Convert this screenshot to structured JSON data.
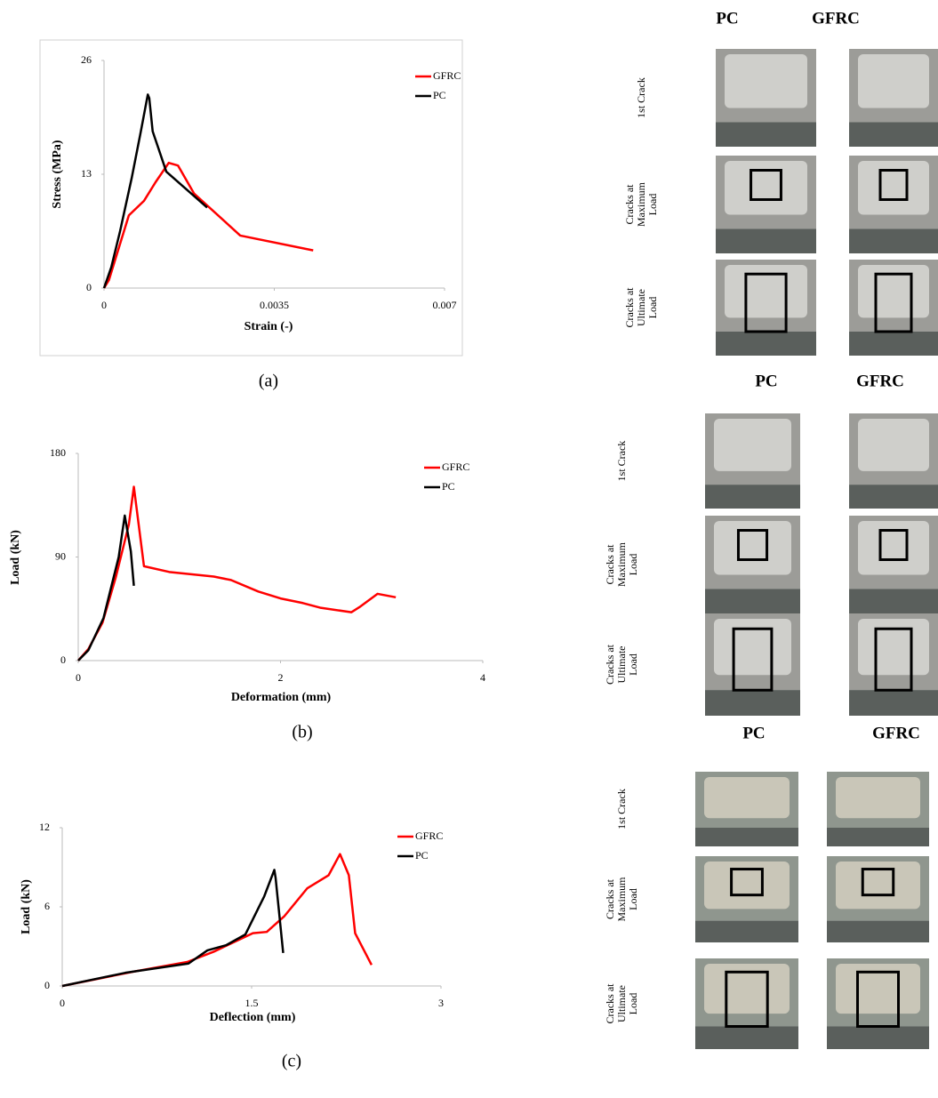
{
  "chart_data": [
    {
      "type": "line",
      "caption": "(a)",
      "x_label": "Strain (-)",
      "y_label": "Stress (MPa)",
      "xlim": [
        0,
        0.007
      ],
      "ylim": [
        0,
        26
      ],
      "xticks": [
        0,
        0.0035,
        0.007
      ],
      "yticks": [
        0,
        13,
        26
      ],
      "legend": "top-right",
      "border": true,
      "series": [
        {
          "name": "GFRC",
          "color": "#ff0000",
          "x": [
            0,
            0.0001,
            0.00051,
            0.00082,
            0.00106,
            0.00133,
            0.00152,
            0.00185,
            0.0028,
            0.0043
          ],
          "values": [
            0,
            0.9,
            8.3,
            9.95,
            12.1,
            14.3,
            14.0,
            10.8,
            6.0,
            4.3
          ]
        },
        {
          "name": "PC",
          "color": "#000000",
          "x": [
            0,
            0.00015,
            0.00033,
            0.00057,
            0.00075,
            0.0009,
            0.00093,
            0.001,
            0.00111,
            0.00128,
            0.00212
          ],
          "values": [
            0,
            2.4,
            6.5,
            12.6,
            17.7,
            22.1,
            21.7,
            17.9,
            16.1,
            13.3,
            9.2
          ]
        }
      ]
    },
    {
      "type": "line",
      "caption": "(b)",
      "x_label": "Deformation (mm)",
      "y_label": "Load (kN)",
      "xlim": [
        0,
        4
      ],
      "ylim": [
        0,
        180
      ],
      "xticks": [
        0,
        2,
        4
      ],
      "yticks": [
        0,
        90,
        180
      ],
      "legend": "top-right",
      "border": false,
      "series": [
        {
          "name": "GFRC",
          "color": "#ff0000",
          "x": [
            0,
            0.1,
            0.24,
            0.37,
            0.5,
            0.55,
            0.65,
            0.9,
            1.34,
            1.51,
            1.78,
            2.0,
            2.22,
            2.39,
            2.7,
            2.79,
            2.96,
            3.14
          ],
          "values": [
            0,
            10,
            33,
            72,
            118,
            151,
            82,
            77,
            73,
            70,
            60,
            54,
            50,
            46,
            42,
            47,
            58,
            55
          ]
        },
        {
          "name": "PC",
          "color": "#000000",
          "x": [
            0,
            0.1,
            0.25,
            0.4,
            0.46,
            0.52,
            0.55
          ],
          "values": [
            0,
            9,
            37,
            90,
            126,
            95,
            65
          ]
        }
      ]
    },
    {
      "type": "line",
      "caption": "(c)",
      "x_label": "Deflection (mm)",
      "y_label": "Load (kN)",
      "xlim": [
        0,
        3
      ],
      "ylim": [
        0,
        12
      ],
      "xticks": [
        0,
        1.5,
        3
      ],
      "yticks": [
        0,
        6,
        12
      ],
      "legend": "top-right",
      "border": false,
      "series": [
        {
          "name": "GFRC",
          "color": "#ff0000",
          "x": [
            0,
            0.56,
            0.99,
            1.2,
            1.51,
            1.62,
            1.76,
            1.94,
            2.11,
            2.2,
            2.27,
            2.32,
            2.45
          ],
          "values": [
            0,
            1.08,
            1.82,
            2.6,
            4.0,
            4.1,
            5.3,
            7.4,
            8.4,
            10.0,
            8.4,
            4.0,
            1.6
          ]
        },
        {
          "name": "PC",
          "color": "#000000",
          "x": [
            0,
            0.5,
            1.0,
            1.15,
            1.3,
            1.45,
            1.6,
            1.68,
            1.69,
            1.75
          ],
          "values": [
            0,
            1.0,
            1.7,
            2.7,
            3.1,
            3.9,
            6.8,
            8.8,
            8.2,
            2.5
          ]
        }
      ]
    }
  ],
  "photo_panels": [
    {
      "columns": [
        "PC",
        "GFRC"
      ],
      "rows": [
        [
          "1st Crack"
        ],
        [
          "Cracks at",
          "Maximum",
          "Load"
        ],
        [
          "Cracks at",
          "Ultimate",
          "Load"
        ]
      ]
    },
    {
      "columns": [
        "PC",
        "GFRC"
      ],
      "rows": [
        [
          "1st Crack"
        ],
        [
          "Cracks at",
          "Maximum",
          "Load"
        ],
        [
          "Cracks at",
          "Ultimate",
          "Load"
        ]
      ]
    },
    {
      "columns": [
        "PC",
        "GFRC"
      ],
      "rows": [
        [
          "1st Crack"
        ],
        [
          "Cracks at",
          "Maximum",
          "Load"
        ],
        [
          "Cracks at",
          "Ultimate",
          "Load"
        ]
      ]
    }
  ]
}
